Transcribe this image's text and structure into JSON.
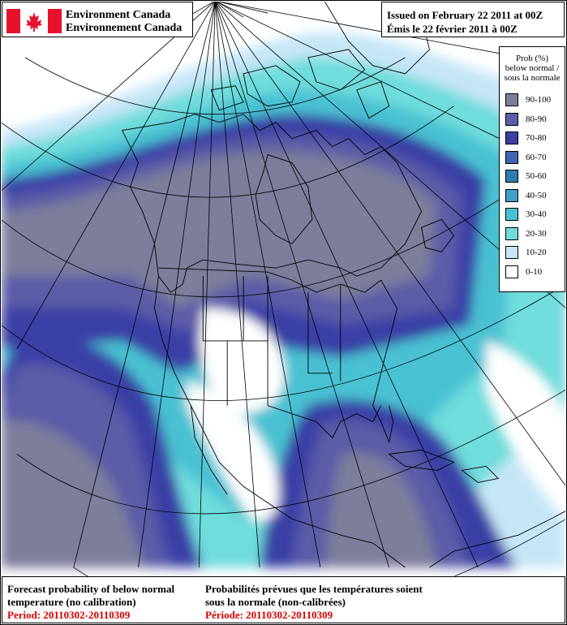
{
  "header": {
    "org_en": "Environment Canada",
    "org_fr": "Environnement Canada",
    "issued_en": "Issued on February 22 2011 at 00Z",
    "issued_fr": "Émis le 22 février 2011 à 00Z"
  },
  "legend": {
    "title_1": "Prob (%)",
    "title_2": "below normal /",
    "title_3": "sous la normale",
    "items": [
      {
        "label": "90-100",
        "color": "#7d7d9c"
      },
      {
        "label": "80-90",
        "color": "#5c5ca8"
      },
      {
        "label": "70-80",
        "color": "#3a3fa6"
      },
      {
        "label": "60-70",
        "color": "#3f66b2"
      },
      {
        "label": "50-60",
        "color": "#2f7cb0"
      },
      {
        "label": "40-50",
        "color": "#3f9fc6"
      },
      {
        "label": "30-40",
        "color": "#48c1d2"
      },
      {
        "label": "20-30",
        "color": "#6fdcdc"
      },
      {
        "label": "10-20",
        "color": "#c6e6f7"
      },
      {
        "label": "0-10",
        "color": "#ffffff"
      }
    ]
  },
  "footer": {
    "title_en_1": "Forecast probability of below normal",
    "title_en_2": "temperature (no calibration)",
    "period_en": "Period: 20110302-20110309",
    "title_fr_1": "Probabilités prévues que les températures soient",
    "title_fr_2": "sous la normale (non-calibrées)",
    "period_fr": "Période: 20110302-20110309"
  },
  "colors": {
    "flag_red": "#e8112d",
    "period_red": "#d40000"
  }
}
